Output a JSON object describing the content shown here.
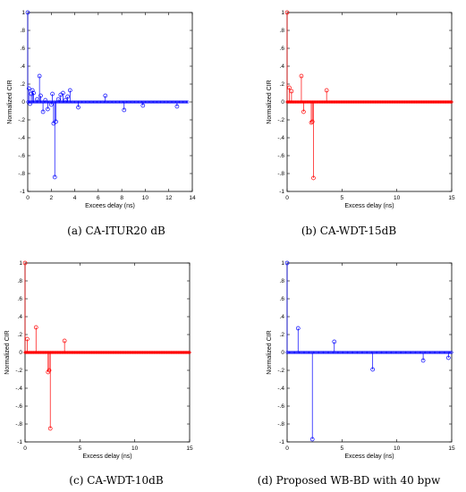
{
  "chart_data": [
    {
      "type": "stem",
      "caption": "(a) CA-ITUR20 dB",
      "xlabel": "Excees delay (ns)",
      "ylabel": "Normalized CIR",
      "xlim": [
        0,
        14
      ],
      "ylim": [
        -1,
        1
      ],
      "xticks": [
        0,
        2,
        4,
        6,
        8,
        10,
        12,
        14
      ],
      "yticks": [
        -1,
        -0.8,
        -0.6,
        -0.4,
        -0.2,
        0,
        0.2,
        0.4,
        0.6,
        0.8,
        1
      ],
      "color": "#0000ff",
      "max_delay": 13.6,
      "sample_step": 0.1,
      "points": [
        [
          0.0,
          1.0
        ],
        [
          0.1,
          0.15
        ],
        [
          0.2,
          -0.02
        ],
        [
          0.3,
          0.09
        ],
        [
          0.4,
          0.13
        ],
        [
          0.5,
          0.1
        ],
        [
          0.8,
          0.03
        ],
        [
          1.0,
          0.29
        ],
        [
          1.1,
          0.07
        ],
        [
          1.3,
          -0.11
        ],
        [
          1.5,
          0.02
        ],
        [
          1.7,
          -0.08
        ],
        [
          2.0,
          -0.03
        ],
        [
          2.1,
          0.09
        ],
        [
          2.2,
          -0.24
        ],
        [
          2.3,
          -0.84
        ],
        [
          2.4,
          -0.22
        ],
        [
          2.6,
          0.03
        ],
        [
          2.8,
          0.08
        ],
        [
          3.0,
          0.1
        ],
        [
          3.2,
          0.02
        ],
        [
          3.4,
          0.06
        ],
        [
          3.6,
          0.13
        ],
        [
          4.3,
          -0.06
        ],
        [
          6.6,
          0.07
        ],
        [
          8.2,
          -0.09
        ],
        [
          9.8,
          -0.04
        ],
        [
          12.7,
          -0.05
        ]
      ]
    },
    {
      "type": "stem",
      "caption": "(b) CA-WDT-15dB",
      "xlabel": "Excess delay (ns)",
      "ylabel": "Normalized CIR",
      "xlim": [
        0,
        15
      ],
      "ylim": [
        -1,
        1
      ],
      "xticks": [
        0,
        5,
        10,
        15
      ],
      "yticks": [
        -1,
        -0.8,
        -0.6,
        -0.4,
        -0.2,
        0,
        0.2,
        0.4,
        0.6,
        0.8,
        1
      ],
      "color": "#ff0000",
      "max_delay": 15,
      "sample_step": 0.05,
      "points": [
        [
          0.0,
          1.0
        ],
        [
          0.2,
          0.16
        ],
        [
          0.4,
          0.12
        ],
        [
          1.3,
          0.29
        ],
        [
          1.5,
          -0.11
        ],
        [
          2.2,
          -0.23
        ],
        [
          2.3,
          -0.22
        ],
        [
          2.4,
          -0.85
        ],
        [
          3.6,
          0.13
        ]
      ]
    },
    {
      "type": "stem",
      "caption": "(c) CA-WDT-10dB",
      "xlabel": "Excess delay (ns)",
      "ylabel": "Normalized CIR",
      "xlim": [
        0,
        15
      ],
      "ylim": [
        -1,
        1
      ],
      "xticks": [
        0,
        5,
        10,
        15
      ],
      "yticks": [
        -1,
        -0.8,
        -0.6,
        -0.4,
        -0.2,
        0,
        0.2,
        0.4,
        0.6,
        0.8,
        1
      ],
      "color": "#ff0000",
      "max_delay": 15,
      "sample_step": 0.05,
      "points": [
        [
          0.0,
          1.0
        ],
        [
          0.2,
          0.15
        ],
        [
          1.0,
          0.28
        ],
        [
          2.1,
          -0.22
        ],
        [
          2.2,
          -0.2
        ],
        [
          2.3,
          -0.85
        ],
        [
          3.6,
          0.13
        ]
      ]
    },
    {
      "type": "stem",
      "caption": "(d) Proposed WB-BD with 40 bpw",
      "xlabel": "Excess delay (ns)",
      "ylabel": "Normalized CIR",
      "xlim": [
        0,
        15
      ],
      "ylim": [
        -1,
        1
      ],
      "xticks": [
        0,
        5,
        10,
        15
      ],
      "yticks": [
        -1,
        -0.8,
        -0.6,
        -0.4,
        -0.2,
        0,
        0.2,
        0.4,
        0.6,
        0.8,
        1
      ],
      "color": "#0000ff",
      "max_delay": 15,
      "sample_step": 0.1,
      "points": [
        [
          0.0,
          1.0
        ],
        [
          1.0,
          0.27
        ],
        [
          2.3,
          -0.97
        ],
        [
          4.3,
          0.12
        ],
        [
          7.8,
          -0.19
        ],
        [
          12.4,
          -0.09
        ],
        [
          14.7,
          -0.06
        ]
      ]
    }
  ]
}
